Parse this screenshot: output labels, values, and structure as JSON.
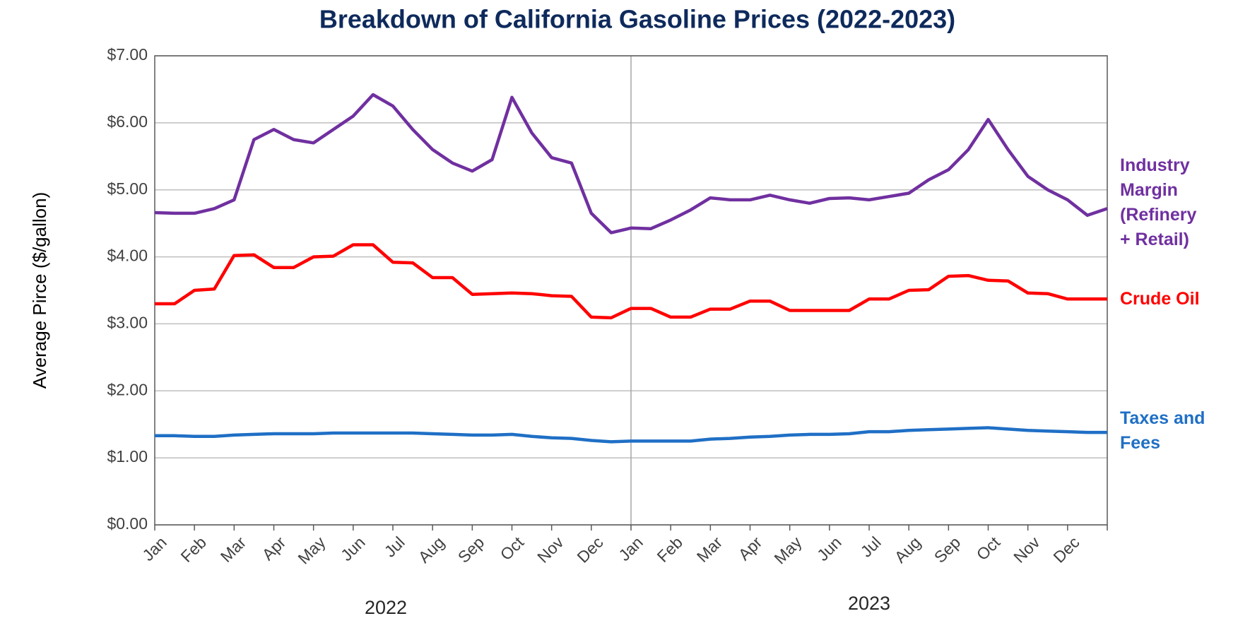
{
  "chart_data": {
    "type": "line",
    "title": "Breakdown of California Gasoline Prices (2022-2023)",
    "y_label": "Average Pirce ($/gallon)",
    "categories": [
      "Jan",
      null,
      "Feb",
      null,
      "Mar",
      null,
      "Apr",
      null,
      "May",
      null,
      "Jun",
      null,
      "Jul",
      null,
      "Aug",
      null,
      "Sep",
      null,
      "Oct",
      null,
      "Nov",
      null,
      "Dec",
      null,
      "Jan",
      null,
      "Feb",
      null,
      "Mar",
      null,
      "Apr",
      null,
      "May",
      null,
      "Jun",
      null,
      "Jul",
      null,
      "Aug",
      null,
      "Sep",
      null,
      "Oct",
      null,
      "Nov",
      null,
      "Dec",
      null,
      null
    ],
    "annotations": [
      "2022",
      "2023"
    ],
    "series": [
      {
        "name": "Industry Margin (Refinery + Retail)",
        "color": "#7030a0",
        "values": [
          4.66,
          4.65,
          4.65,
          4.72,
          4.85,
          5.75,
          5.9,
          5.75,
          5.7,
          5.9,
          6.1,
          6.42,
          6.25,
          5.9,
          5.6,
          5.4,
          5.28,
          5.45,
          6.38,
          5.85,
          5.48,
          5.4,
          4.65,
          4.36,
          4.43,
          4.42,
          4.55,
          4.7,
          4.88,
          4.85,
          4.85,
          4.92,
          4.85,
          4.8,
          4.87,
          4.88,
          4.85,
          4.9,
          4.95,
          5.15,
          5.3,
          5.6,
          6.05,
          5.6,
          5.2,
          5.0,
          4.85,
          4.62,
          4.72
        ]
      },
      {
        "name": "Crude Oil",
        "color": "#ff0000",
        "values": [
          3.3,
          3.3,
          3.5,
          3.52,
          4.02,
          4.03,
          3.84,
          3.84,
          4.0,
          4.01,
          4.18,
          4.18,
          3.92,
          3.91,
          3.69,
          3.69,
          3.44,
          3.45,
          3.46,
          3.45,
          3.42,
          3.41,
          3.1,
          3.09,
          3.23,
          3.23,
          3.1,
          3.1,
          3.22,
          3.22,
          3.34,
          3.34,
          3.2,
          3.2,
          3.2,
          3.2,
          3.37,
          3.37,
          3.5,
          3.51,
          3.71,
          3.72,
          3.65,
          3.64,
          3.46,
          3.45,
          3.37,
          3.37,
          3.37
        ]
      },
      {
        "name": "Taxes and Fees",
        "color": "#1f6fc5",
        "values": [
          1.33,
          1.33,
          1.32,
          1.32,
          1.34,
          1.35,
          1.36,
          1.36,
          1.36,
          1.37,
          1.37,
          1.37,
          1.37,
          1.37,
          1.36,
          1.35,
          1.34,
          1.34,
          1.35,
          1.32,
          1.3,
          1.29,
          1.26,
          1.24,
          1.25,
          1.25,
          1.25,
          1.25,
          1.28,
          1.29,
          1.31,
          1.32,
          1.34,
          1.35,
          1.35,
          1.36,
          1.39,
          1.39,
          1.41,
          1.42,
          1.43,
          1.44,
          1.45,
          1.43,
          1.41,
          1.4,
          1.39,
          1.38,
          1.38
        ]
      }
    ],
    "ylim": [
      0,
      7
    ],
    "yticks": [
      {
        "value": 0,
        "label": "$0.00"
      },
      {
        "value": 1,
        "label": "$1.00"
      },
      {
        "value": 2,
        "label": "$2.00"
      },
      {
        "value": 3,
        "label": "$3.00"
      },
      {
        "value": 4,
        "label": "$4.00"
      },
      {
        "value": 5,
        "label": "$5.00"
      },
      {
        "value": 6,
        "label": "$6.00"
      },
      {
        "value": 7,
        "label": "$7.00"
      }
    ],
    "grid": true
  }
}
